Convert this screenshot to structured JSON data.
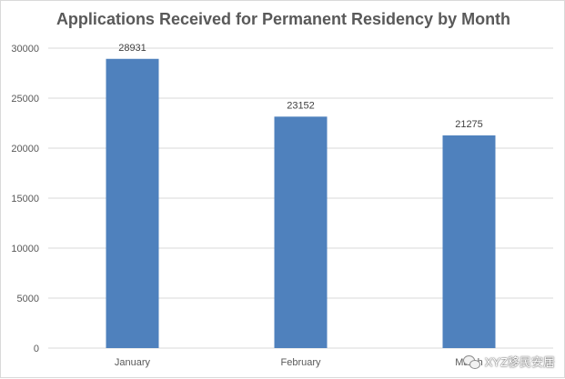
{
  "chart_data": {
    "type": "bar",
    "title": "Applications Received for Permanent Residency by Month",
    "categories": [
      "January",
      "February",
      "March"
    ],
    "values": [
      28931,
      23152,
      21275
    ],
    "ylim": [
      0,
      30000
    ],
    "yticks": [
      0,
      5000,
      10000,
      15000,
      20000,
      25000,
      30000
    ],
    "grid": true,
    "legend": "none",
    "bar_color": "#4f81bd",
    "grid_color": "#d9d9d9"
  },
  "watermark": {
    "text": "XYZ移民安居",
    "icon": "wechat-icon"
  }
}
